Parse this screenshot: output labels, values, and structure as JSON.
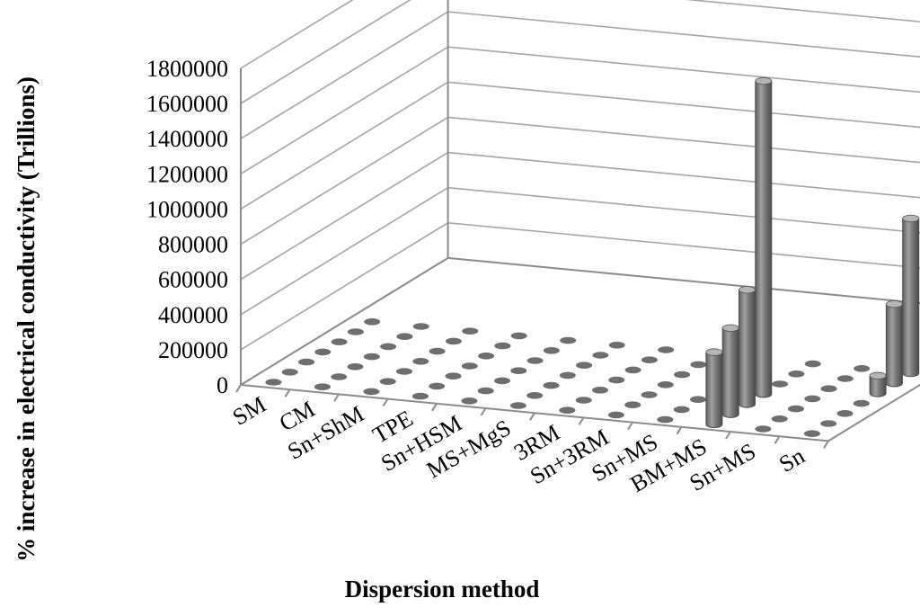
{
  "chart_data": {
    "type": "bar",
    "subtype": "3d-column",
    "title": "",
    "xlabel": "Dispersion method",
    "ylabel": "% increase in electrical conductivity (Trillions)",
    "ylim": [
      0,
      1800000
    ],
    "yticks": [
      "0",
      "200000",
      "400000",
      "600000",
      "800000",
      "1000000",
      "1200000",
      "1400000",
      "1600000",
      "1800000"
    ],
    "categories": [
      "SM",
      "CM",
      "Sn+ShM",
      "TPE",
      "Sn+HSM",
      "MS+MgS",
      "3RM",
      "Sn+3RM",
      "Sn+MS",
      "BM+MS",
      "Sn+MS",
      "Sn"
    ],
    "series": [
      {
        "values": [
          0,
          0,
          0,
          0,
          0,
          0,
          0,
          0,
          0,
          410000,
          0,
          0
        ]
      },
      {
        "values": [
          0,
          0,
          0,
          0,
          0,
          0,
          0,
          0,
          0,
          490000,
          0,
          0
        ]
      },
      {
        "values": [
          0,
          0,
          0,
          0,
          0,
          0,
          0,
          0,
          0,
          650000,
          0,
          0
        ]
      },
      {
        "values": [
          0,
          0,
          0,
          0,
          0,
          0,
          0,
          0,
          0,
          1780000,
          0,
          0
        ]
      },
      {
        "values": [
          0,
          0,
          0,
          0,
          0,
          0,
          0,
          0,
          0,
          0,
          0,
          100000
        ]
      },
      {
        "values": [
          0,
          0,
          0,
          0,
          0,
          0,
          0,
          0,
          0,
          0,
          0,
          450000
        ]
      },
      {
        "values": [
          0,
          0,
          0,
          0,
          0,
          0,
          0,
          0,
          0,
          0,
          0,
          880000
        ]
      }
    ],
    "grid": true,
    "legend": "none",
    "colors": {
      "bar_side": "#7a7a7a",
      "bar_top": "#b5b5b5",
      "grid": "#a6a6a6",
      "marker": "#6e6e6e"
    }
  }
}
